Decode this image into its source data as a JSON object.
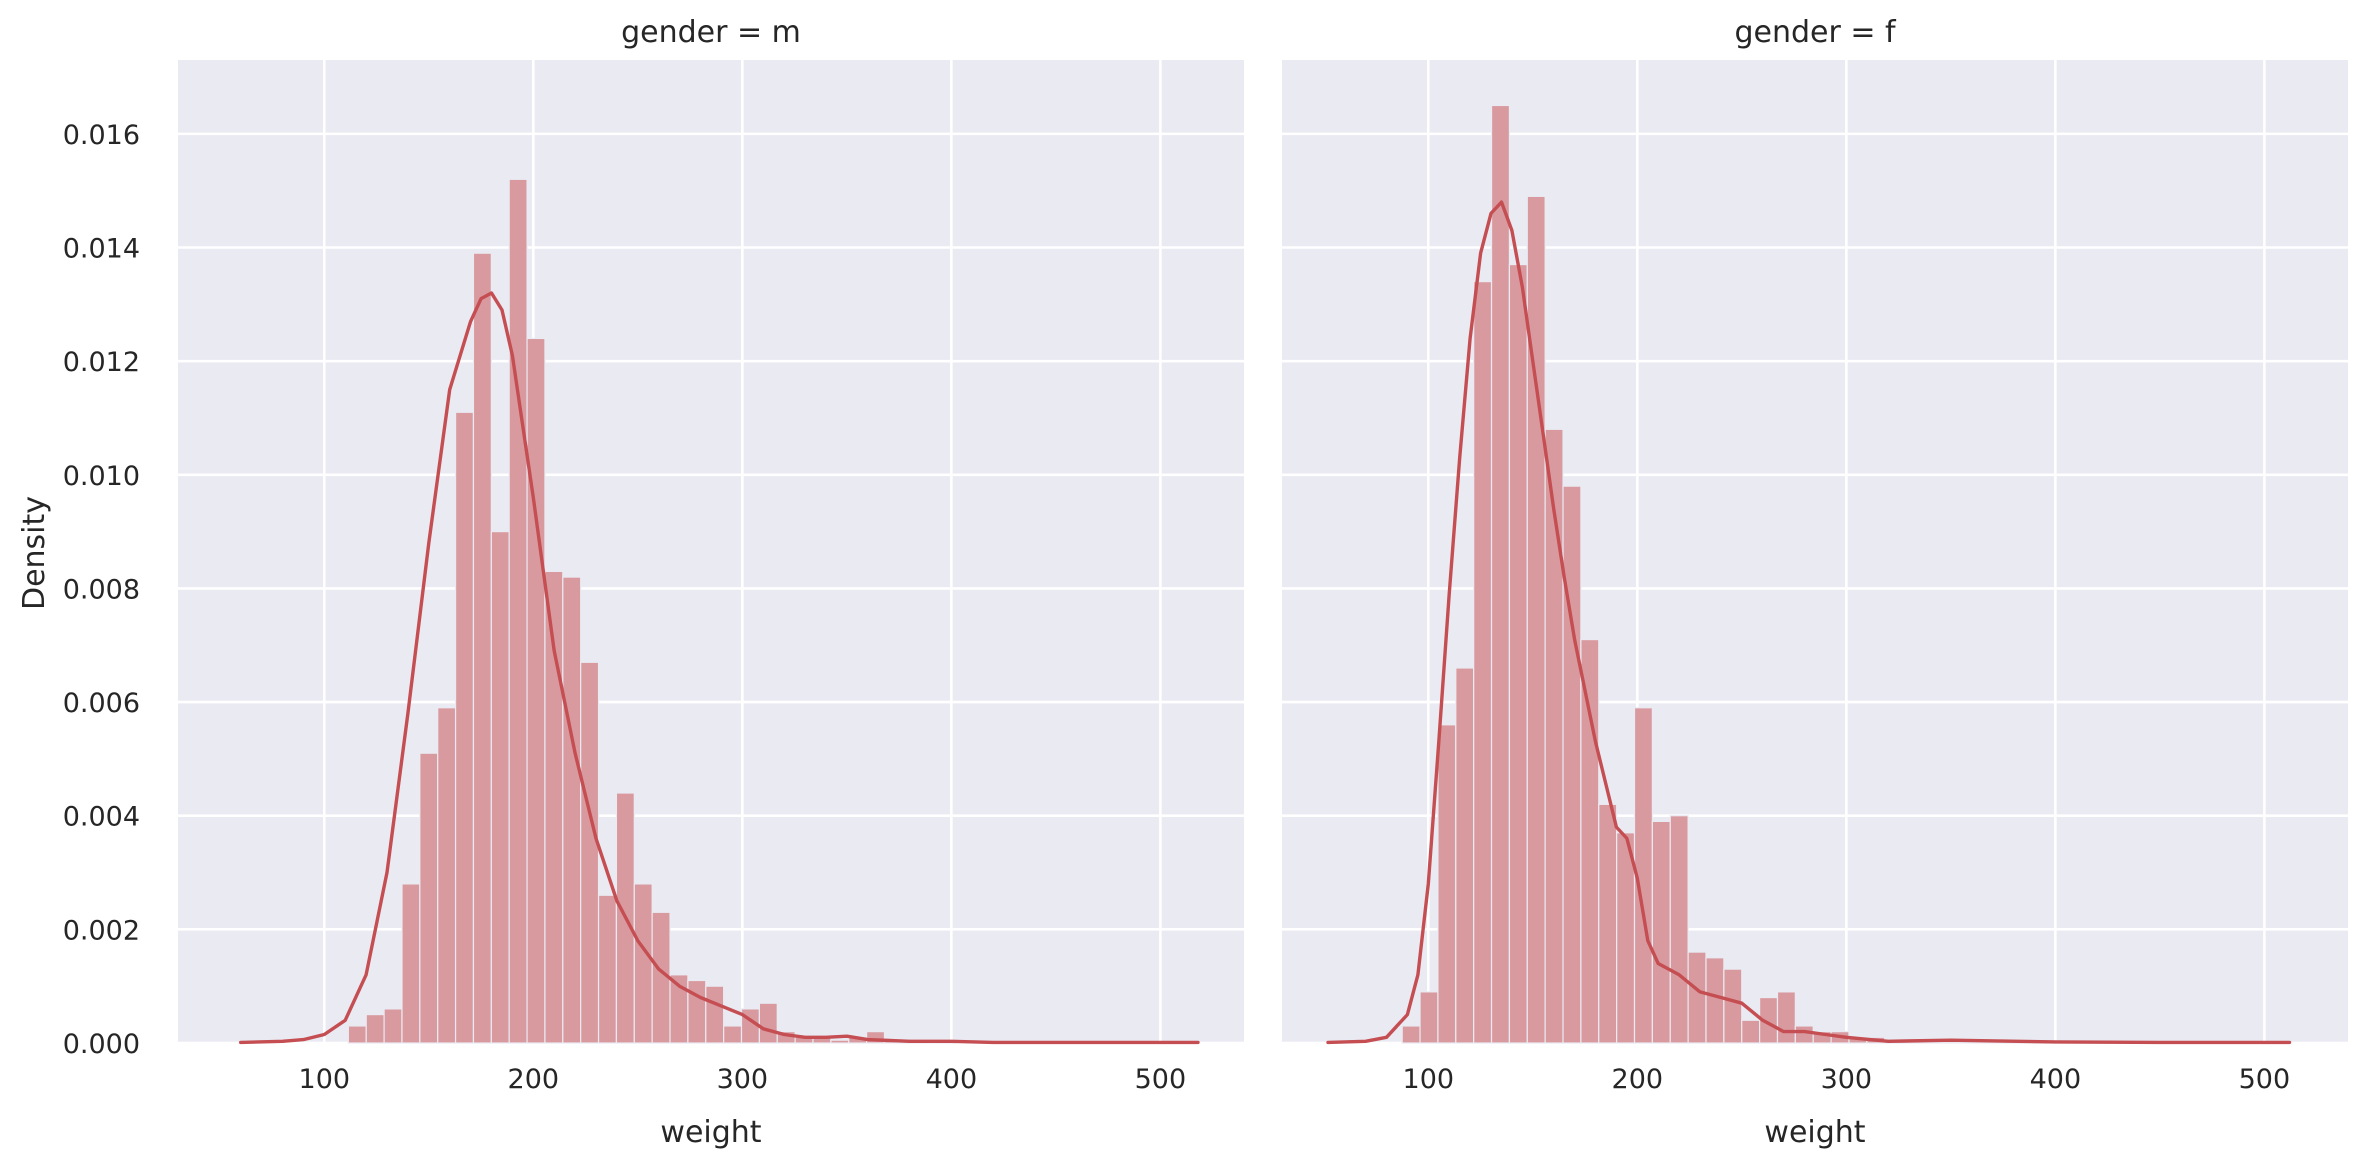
{
  "colors": {
    "bar_fill": "#d99a9f",
    "kde_line": "#c44e52",
    "panel_background": "#eaeaf2",
    "grid": "#ffffff"
  },
  "chart_data": [
    {
      "type": "bar",
      "title": "gender = m",
      "xlabel": "weight",
      "ylabel": "Density",
      "xlim": [
        30,
        540
      ],
      "ylim": [
        0,
        0.0173
      ],
      "xticks": [
        100,
        200,
        300,
        400,
        500
      ],
      "yticks": [
        0.0,
        0.002,
        0.004,
        0.006,
        0.008,
        0.01,
        0.012,
        0.014,
        0.016
      ],
      "ytick_labels": [
        "0.000",
        "0.002",
        "0.004",
        "0.006",
        "0.008",
        "0.010",
        "0.012",
        "0.014",
        "0.016"
      ],
      "grid": true,
      "histogram": {
        "bin_start": 111.5,
        "bin_width": 8.55,
        "values": [
          0.0003,
          0.0005,
          0.0006,
          0.0028,
          0.0051,
          0.0059,
          0.0111,
          0.0139,
          0.009,
          0.0152,
          0.0124,
          0.0083,
          0.0082,
          0.0067,
          0.0026,
          0.0044,
          0.0028,
          0.0023,
          0.0012,
          0.0011,
          0.001,
          0.0003,
          0.0006,
          0.0007,
          0.0002,
          0.0001,
          0.0001,
          5e-05,
          0.0001,
          0.0002,
          5e-05,
          5e-05,
          3e-05,
          2e-05
        ]
      },
      "kde": {
        "x": [
          60,
          80,
          90,
          100,
          110,
          120,
          130,
          140,
          150,
          160,
          170,
          175,
          180,
          185,
          190,
          200,
          210,
          220,
          230,
          240,
          250,
          260,
          270,
          280,
          290,
          300,
          310,
          320,
          330,
          340,
          350,
          360,
          380,
          400,
          420,
          450,
          480,
          518
        ],
        "y": [
          1e-05,
          3e-05,
          6e-05,
          0.00015,
          0.0004,
          0.0012,
          0.003,
          0.0058,
          0.0088,
          0.0115,
          0.0127,
          0.0131,
          0.0132,
          0.0129,
          0.0121,
          0.0096,
          0.0069,
          0.0051,
          0.0036,
          0.0025,
          0.0018,
          0.0013,
          0.001,
          0.0008,
          0.00065,
          0.0005,
          0.00025,
          0.00015,
          0.0001,
          0.0001,
          0.00012,
          6e-05,
          3e-05,
          3e-05,
          1e-05,
          1e-05,
          1e-05,
          1e-05
        ]
      }
    },
    {
      "type": "bar",
      "title": "gender = f",
      "xlabel": "weight",
      "ylabel": "",
      "xlim": [
        30,
        540
      ],
      "ylim": [
        0,
        0.0173
      ],
      "xticks": [
        100,
        200,
        300,
        400,
        500
      ],
      "yticks": [
        0.0,
        0.002,
        0.004,
        0.006,
        0.008,
        0.01,
        0.012,
        0.014,
        0.016
      ],
      "ytick_labels": [],
      "grid": true,
      "histogram": {
        "bin_start": 87.5,
        "bin_width": 8.55,
        "values": [
          0.0003,
          0.0009,
          0.0056,
          0.0066,
          0.0134,
          0.0165,
          0.0137,
          0.0149,
          0.0108,
          0.0098,
          0.0071,
          0.0042,
          0.0037,
          0.0059,
          0.0039,
          0.004,
          0.0016,
          0.0015,
          0.0013,
          0.0004,
          0.0008,
          0.0009,
          0.0003,
          0.0002,
          0.0002,
          0.0001,
          0.0001,
          5e-05,
          3e-05,
          2e-05,
          2e-05,
          2e-05,
          1e-05,
          1e-05,
          1e-05,
          1e-05,
          1e-05,
          1e-05,
          1e-05,
          1e-05,
          1e-05,
          1e-05,
          1e-05,
          1e-05,
          1e-05,
          1e-05,
          1e-05,
          1e-05,
          1e-05
        ]
      },
      "kde": {
        "x": [
          52,
          70,
          80,
          90,
          95,
          100,
          105,
          110,
          115,
          120,
          125,
          130,
          135,
          140,
          145,
          150,
          155,
          160,
          165,
          170,
          180,
          190,
          195,
          200,
          205,
          210,
          220,
          230,
          240,
          250,
          260,
          270,
          280,
          290,
          300,
          320,
          350,
          400,
          450,
          512
        ],
        "y": [
          1e-05,
          3e-05,
          0.0001,
          0.0005,
          0.0012,
          0.0028,
          0.0053,
          0.0079,
          0.0103,
          0.0124,
          0.0139,
          0.0146,
          0.0148,
          0.0143,
          0.0133,
          0.012,
          0.0107,
          0.0094,
          0.0082,
          0.0071,
          0.0053,
          0.0038,
          0.0036,
          0.0029,
          0.0018,
          0.0014,
          0.0012,
          0.0009,
          0.0008,
          0.0007,
          0.0004,
          0.0002,
          0.0002,
          0.00015,
          0.0001,
          3e-05,
          5e-05,
          2e-05,
          1e-05,
          1e-05
        ]
      }
    }
  ]
}
